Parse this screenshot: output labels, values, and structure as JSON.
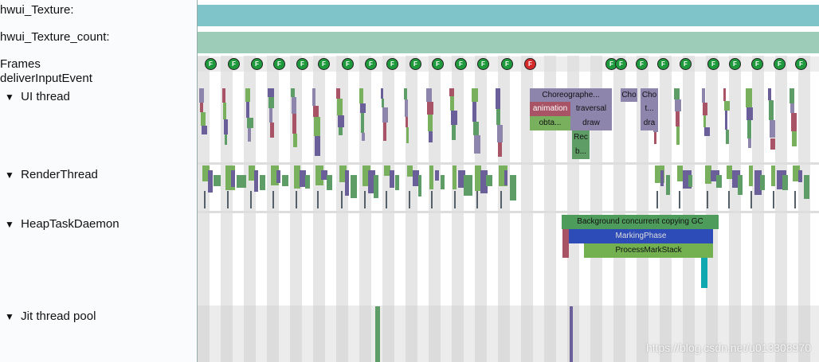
{
  "tracks": [
    {
      "label": "hwui_Texture:"
    },
    {
      "label": "hwui_Texture_count:"
    },
    {
      "label": "Frames"
    },
    {
      "label": "deliverInputEvent"
    },
    {
      "toggle": "▼",
      "label": "UI thread"
    },
    {
      "toggle": "▼",
      "label": "RenderThread"
    },
    {
      "toggle": "▼",
      "label": "HeapTaskDaemon"
    },
    {
      "toggle": "▼",
      "label": "Jit thread pool"
    }
  ],
  "frames": [
    {
      "label": "F",
      "color": "#1e9a3c"
    },
    {
      "label": "F",
      "color": "#1e9a3c"
    },
    {
      "label": "F",
      "color": "#1e9a3c"
    },
    {
      "label": "F",
      "color": "#1e9a3c"
    },
    {
      "label": "F",
      "color": "#1e9a3c"
    },
    {
      "label": "F",
      "color": "#1e9a3c"
    },
    {
      "label": "F",
      "color": "#1e9a3c"
    },
    {
      "label": "F",
      "color": "#1e9a3c"
    },
    {
      "label": "F",
      "color": "#1e9a3c"
    },
    {
      "label": "F",
      "color": "#1e9a3c"
    },
    {
      "label": "F",
      "color": "#1e9a3c"
    },
    {
      "label": "F",
      "color": "#1e9a3c"
    },
    {
      "label": "F",
      "color": "#1e9a3c"
    },
    {
      "label": "F",
      "color": "#1e9a3c"
    },
    {
      "label": "F",
      "color": "#d42a2a"
    },
    {
      "label": "F",
      "color": "#1e9a3c"
    },
    {
      "label": "F",
      "color": "#1e9a3c"
    },
    {
      "label": "F",
      "color": "#1e9a3c"
    },
    {
      "label": "F",
      "color": "#1e9a3c"
    },
    {
      "label": "F",
      "color": "#1e9a3c"
    },
    {
      "label": "F",
      "color": "#1e9a3c"
    },
    {
      "label": "F",
      "color": "#1e9a3c"
    },
    {
      "label": "F",
      "color": "#1e9a3c"
    },
    {
      "label": "F",
      "color": "#1e9a3c"
    },
    {
      "label": "F",
      "color": "#1e9a3c"
    }
  ],
  "slices": [
    {
      "label": "Choreographe..."
    },
    {
      "label": "animation"
    },
    {
      "label": "traversal"
    },
    {
      "label": "obta..."
    },
    {
      "label": "draw"
    },
    {
      "label": "Rec"
    },
    {
      "label": "b..."
    },
    {
      "label": "Cho"
    },
    {
      "label": "Cho"
    },
    {
      "label": "t..."
    },
    {
      "label": "dra"
    },
    {
      "label": "Background concurrent copying GC"
    },
    {
      "label": "MarkingPhase"
    },
    {
      "label": "ProcessMarkStack"
    }
  ],
  "watermark": "https://blog.csdn.net/u013308970"
}
